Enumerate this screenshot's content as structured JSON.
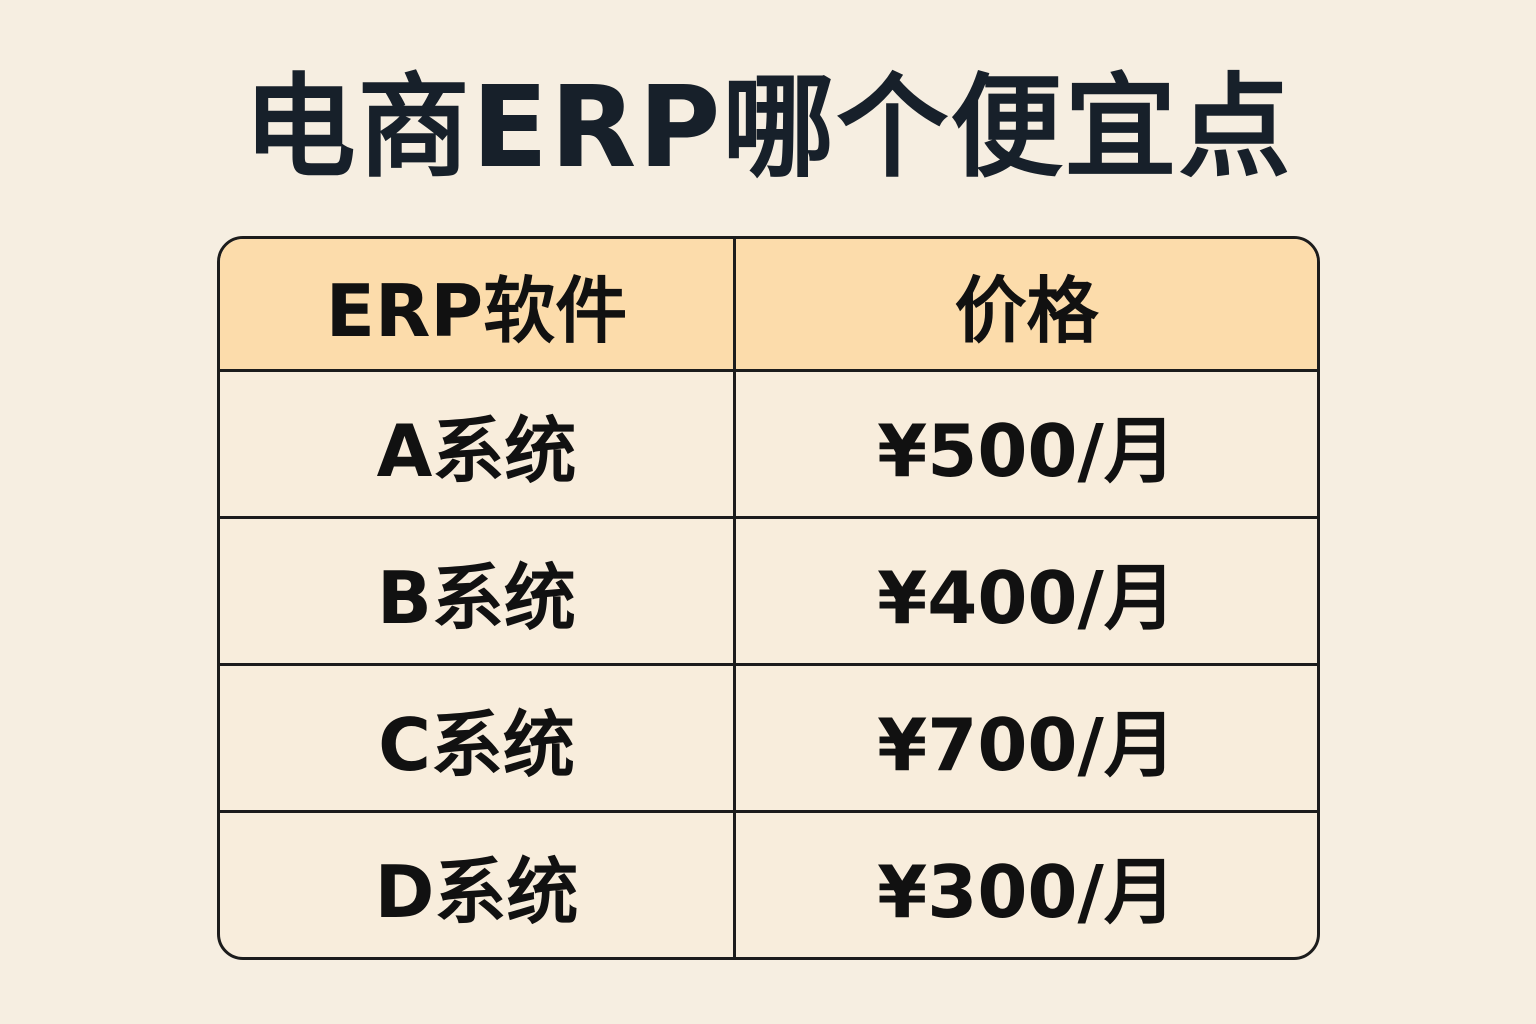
{
  "title": "电商ERP哪个便宜点",
  "table": {
    "headers": [
      "ERP软件",
      "价格"
    ],
    "rows": [
      [
        "A系统",
        "¥500/月"
      ],
      [
        "B系统",
        "¥400/月"
      ],
      [
        "C系统",
        "¥700/月"
      ],
      [
        "D系统",
        "¥300/月"
      ]
    ]
  },
  "colors": {
    "background": "#f6eee1",
    "header": "#fcdcab",
    "cell": "#f8eddc",
    "border": "#1c1c1c",
    "text": "#17202a"
  }
}
